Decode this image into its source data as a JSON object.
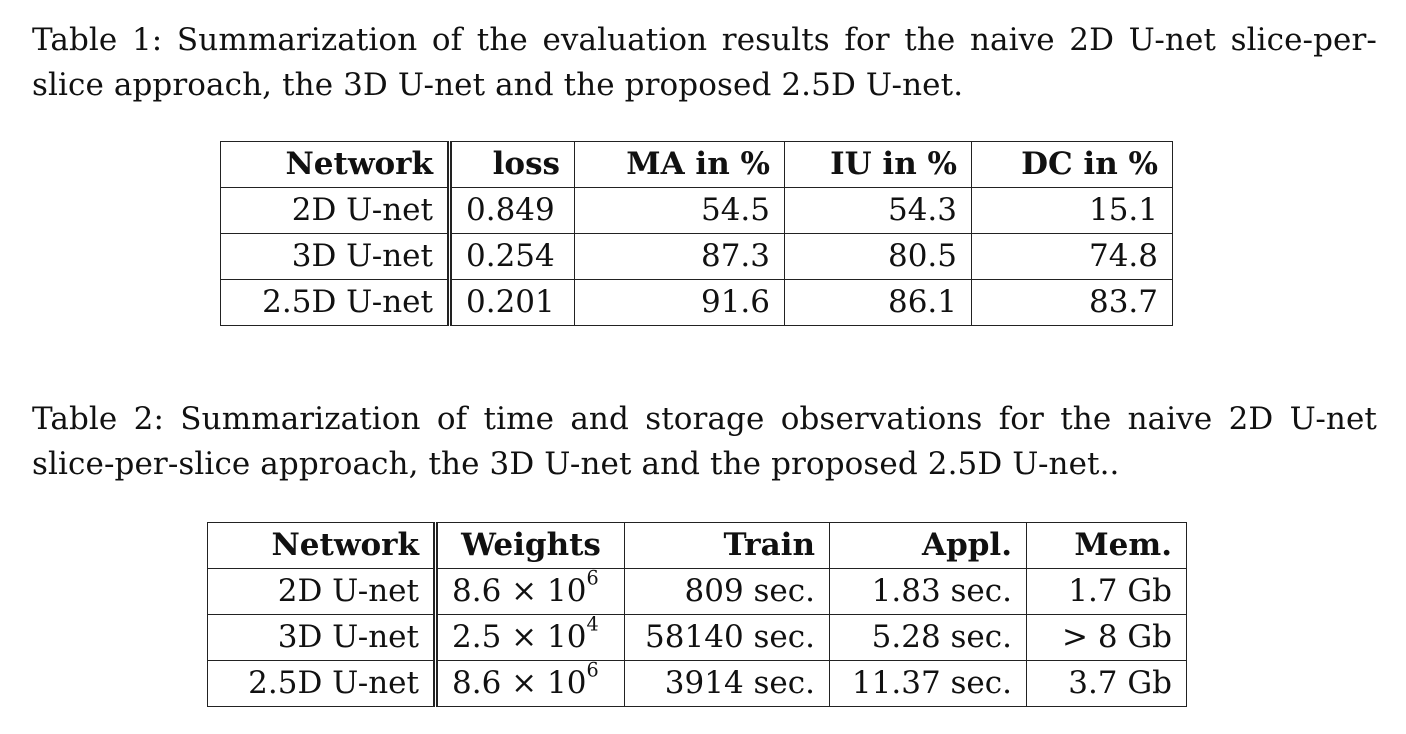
{
  "table1": {
    "caption": "Table 1: Summarization of the evaluation results for the naive 2D U-net slice-per-slice approach, the 3D U-net and the proposed 2.5D U-net.",
    "headers": [
      "Network",
      "loss",
      "MA in %",
      "IU in %",
      "DC in %"
    ],
    "rows": [
      [
        "2D U-net",
        "0.849",
        "54.5",
        "54.3",
        "15.1"
      ],
      [
        "3D U-net",
        "0.254",
        "87.3",
        "80.5",
        "74.8"
      ],
      [
        "2.5D U-net",
        "0.201",
        "91.6",
        "86.1",
        "83.7"
      ]
    ]
  },
  "table2": {
    "caption": "Table 2: Summarization of time and storage observations for the naive 2D U-net slice-per-slice approach, the 3D U-net and the proposed 2.5D U-net..",
    "headers": [
      "Network",
      "Weights",
      "Train",
      "Appl.",
      "Mem."
    ],
    "rows": [
      {
        "network": "2D U-net",
        "weights_base": "8.6 × 10",
        "weights_exp": "6",
        "train": "809 sec.",
        "appl": "1.83 sec.",
        "mem": "1.7 Gb"
      },
      {
        "network": "3D U-net",
        "weights_base": "2.5 × 10",
        "weights_exp": "4",
        "train": "58140 sec.",
        "appl": "5.28 sec.",
        "mem": "> 8 Gb"
      },
      {
        "network": "2.5D U-net",
        "weights_base": "8.6 × 10",
        "weights_exp": "6",
        "train": "3914 sec.",
        "appl": "11.37 sec.",
        "mem": "3.7 Gb"
      }
    ]
  }
}
